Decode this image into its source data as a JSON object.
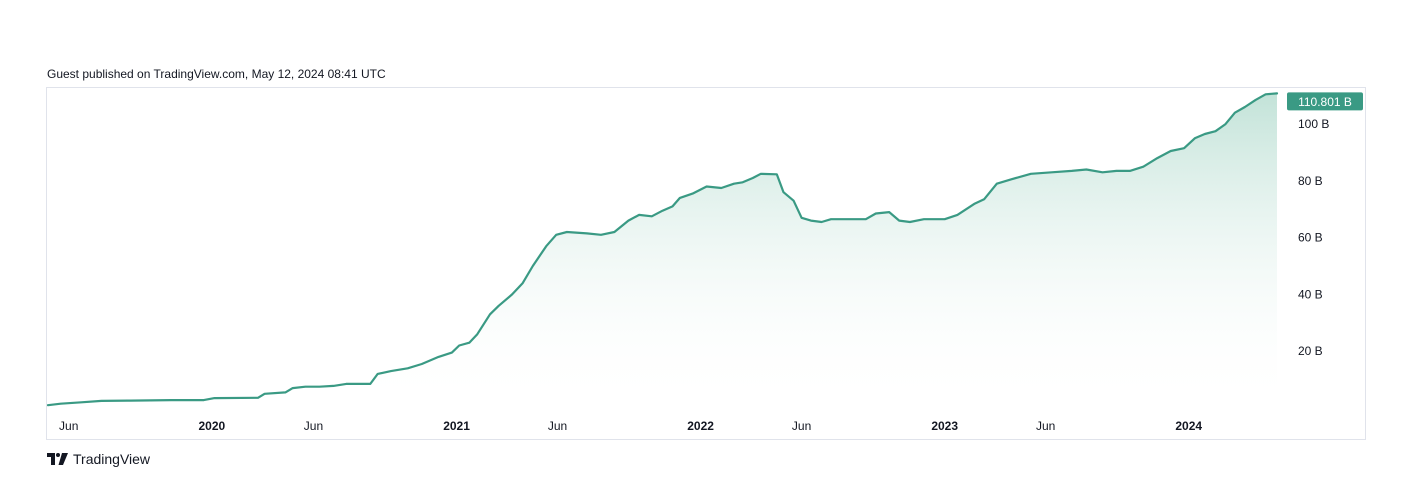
{
  "header": {
    "published_note": "Guest published on TradingView.com, May 12, 2024 08:41 UTC"
  },
  "footer": {
    "brand_label": "TradingView"
  },
  "colors": {
    "line": "#3a9a84",
    "fill_top": "#bfe1d6",
    "badge_bg": "#3a9a84",
    "axis_text": "#131722"
  },
  "icons": {
    "brand": "tradingview-logo-icon"
  },
  "chart_data": {
    "type": "area",
    "title": "",
    "xlabel": "",
    "ylabel": "",
    "ylim": [
      0,
      112
    ],
    "xlim": [
      "2019-05-01",
      "2024-05-12"
    ],
    "grid": false,
    "last_value_label": "110.801 B",
    "y_ticks": [
      {
        "value": 20,
        "label": "20 B"
      },
      {
        "value": 40,
        "label": "40 B"
      },
      {
        "value": 60,
        "label": "60 B"
      },
      {
        "value": 80,
        "label": "80 B"
      },
      {
        "value": 100,
        "label": "100 B"
      }
    ],
    "x_ticks": [
      {
        "date": "2019-06-01",
        "label": "Jun",
        "bold": false
      },
      {
        "date": "2020-01-01",
        "label": "2020",
        "bold": true
      },
      {
        "date": "2020-06-01",
        "label": "Jun",
        "bold": false
      },
      {
        "date": "2021-01-01",
        "label": "2021",
        "bold": true
      },
      {
        "date": "2021-06-01",
        "label": "Jun",
        "bold": false
      },
      {
        "date": "2022-01-01",
        "label": "2022",
        "bold": true
      },
      {
        "date": "2022-06-01",
        "label": "Jun",
        "bold": false
      },
      {
        "date": "2023-01-01",
        "label": "2023",
        "bold": true
      },
      {
        "date": "2023-06-01",
        "label": "Jun",
        "bold": false
      },
      {
        "date": "2024-01-01",
        "label": "2024",
        "bold": true
      }
    ],
    "series": [
      {
        "points": [
          [
            "2019-05-01",
            1.0
          ],
          [
            "2019-05-20",
            1.5
          ],
          [
            "2019-06-20",
            2.0
          ],
          [
            "2019-07-20",
            2.5
          ],
          [
            "2019-09-01",
            2.6
          ],
          [
            "2019-11-01",
            2.8
          ],
          [
            "2019-12-20",
            2.8
          ],
          [
            "2020-01-05",
            3.5
          ],
          [
            "2020-03-10",
            3.6
          ],
          [
            "2020-03-20",
            5.0
          ],
          [
            "2020-04-20",
            5.5
          ],
          [
            "2020-05-01",
            7.0
          ],
          [
            "2020-05-20",
            7.5
          ],
          [
            "2020-06-10",
            7.5
          ],
          [
            "2020-07-01",
            7.8
          ],
          [
            "2020-07-20",
            8.5
          ],
          [
            "2020-08-25",
            8.5
          ],
          [
            "2020-09-05",
            12.0
          ],
          [
            "2020-09-25",
            13.0
          ],
          [
            "2020-10-20",
            14.0
          ],
          [
            "2020-11-10",
            15.5
          ],
          [
            "2020-12-05",
            18.0
          ],
          [
            "2020-12-25",
            19.5
          ],
          [
            "2021-01-05",
            22.0
          ],
          [
            "2021-01-20",
            23.0
          ],
          [
            "2021-02-01",
            26.0
          ],
          [
            "2021-02-20",
            33.0
          ],
          [
            "2021-03-05",
            36.0
          ],
          [
            "2021-03-25",
            40.0
          ],
          [
            "2021-04-10",
            44.0
          ],
          [
            "2021-04-25",
            50.0
          ],
          [
            "2021-05-15",
            57.0
          ],
          [
            "2021-05-30",
            61.0
          ],
          [
            "2021-06-15",
            62.0
          ],
          [
            "2021-07-15",
            61.5
          ],
          [
            "2021-08-05",
            61.0
          ],
          [
            "2021-08-25",
            62.0
          ],
          [
            "2021-09-15",
            66.0
          ],
          [
            "2021-10-01",
            68.0
          ],
          [
            "2021-10-20",
            67.5
          ],
          [
            "2021-11-05",
            69.5
          ],
          [
            "2021-11-20",
            71.0
          ],
          [
            "2021-12-01",
            74.0
          ],
          [
            "2021-12-20",
            75.5
          ],
          [
            "2022-01-10",
            78.0
          ],
          [
            "2022-02-01",
            77.5
          ],
          [
            "2022-02-20",
            79.0
          ],
          [
            "2022-03-05",
            79.5
          ],
          [
            "2022-03-20",
            81.0
          ],
          [
            "2022-04-01",
            82.5
          ],
          [
            "2022-04-25",
            82.3
          ],
          [
            "2022-05-05",
            76.0
          ],
          [
            "2022-05-20",
            73.0
          ],
          [
            "2022-06-01",
            67.0
          ],
          [
            "2022-06-15",
            66.0
          ],
          [
            "2022-07-01",
            65.5
          ],
          [
            "2022-07-15",
            66.5
          ],
          [
            "2022-09-05",
            66.5
          ],
          [
            "2022-09-20",
            68.5
          ],
          [
            "2022-10-10",
            69.0
          ],
          [
            "2022-10-25",
            66.0
          ],
          [
            "2022-11-10",
            65.5
          ],
          [
            "2022-12-01",
            66.5
          ],
          [
            "2023-01-01",
            66.5
          ],
          [
            "2023-01-20",
            68.0
          ],
          [
            "2023-02-15",
            72.0
          ],
          [
            "2023-03-01",
            73.5
          ],
          [
            "2023-03-20",
            79.0
          ],
          [
            "2023-04-10",
            80.5
          ],
          [
            "2023-05-10",
            82.5
          ],
          [
            "2023-06-10",
            83.0
          ],
          [
            "2023-07-10",
            83.5
          ],
          [
            "2023-08-01",
            84.0
          ],
          [
            "2023-08-25",
            83.0
          ],
          [
            "2023-09-15",
            83.5
          ],
          [
            "2023-10-05",
            83.5
          ],
          [
            "2023-10-25",
            85.0
          ],
          [
            "2023-11-15",
            88.0
          ],
          [
            "2023-12-05",
            90.5
          ],
          [
            "2023-12-25",
            91.5
          ],
          [
            "2024-01-10",
            95.0
          ],
          [
            "2024-01-25",
            96.5
          ],
          [
            "2024-02-10",
            97.5
          ],
          [
            "2024-02-25",
            100.0
          ],
          [
            "2024-03-10",
            104.0
          ],
          [
            "2024-03-25",
            106.0
          ],
          [
            "2024-04-10",
            108.5
          ],
          [
            "2024-04-25",
            110.5
          ],
          [
            "2024-05-12",
            110.801
          ]
        ]
      }
    ]
  }
}
